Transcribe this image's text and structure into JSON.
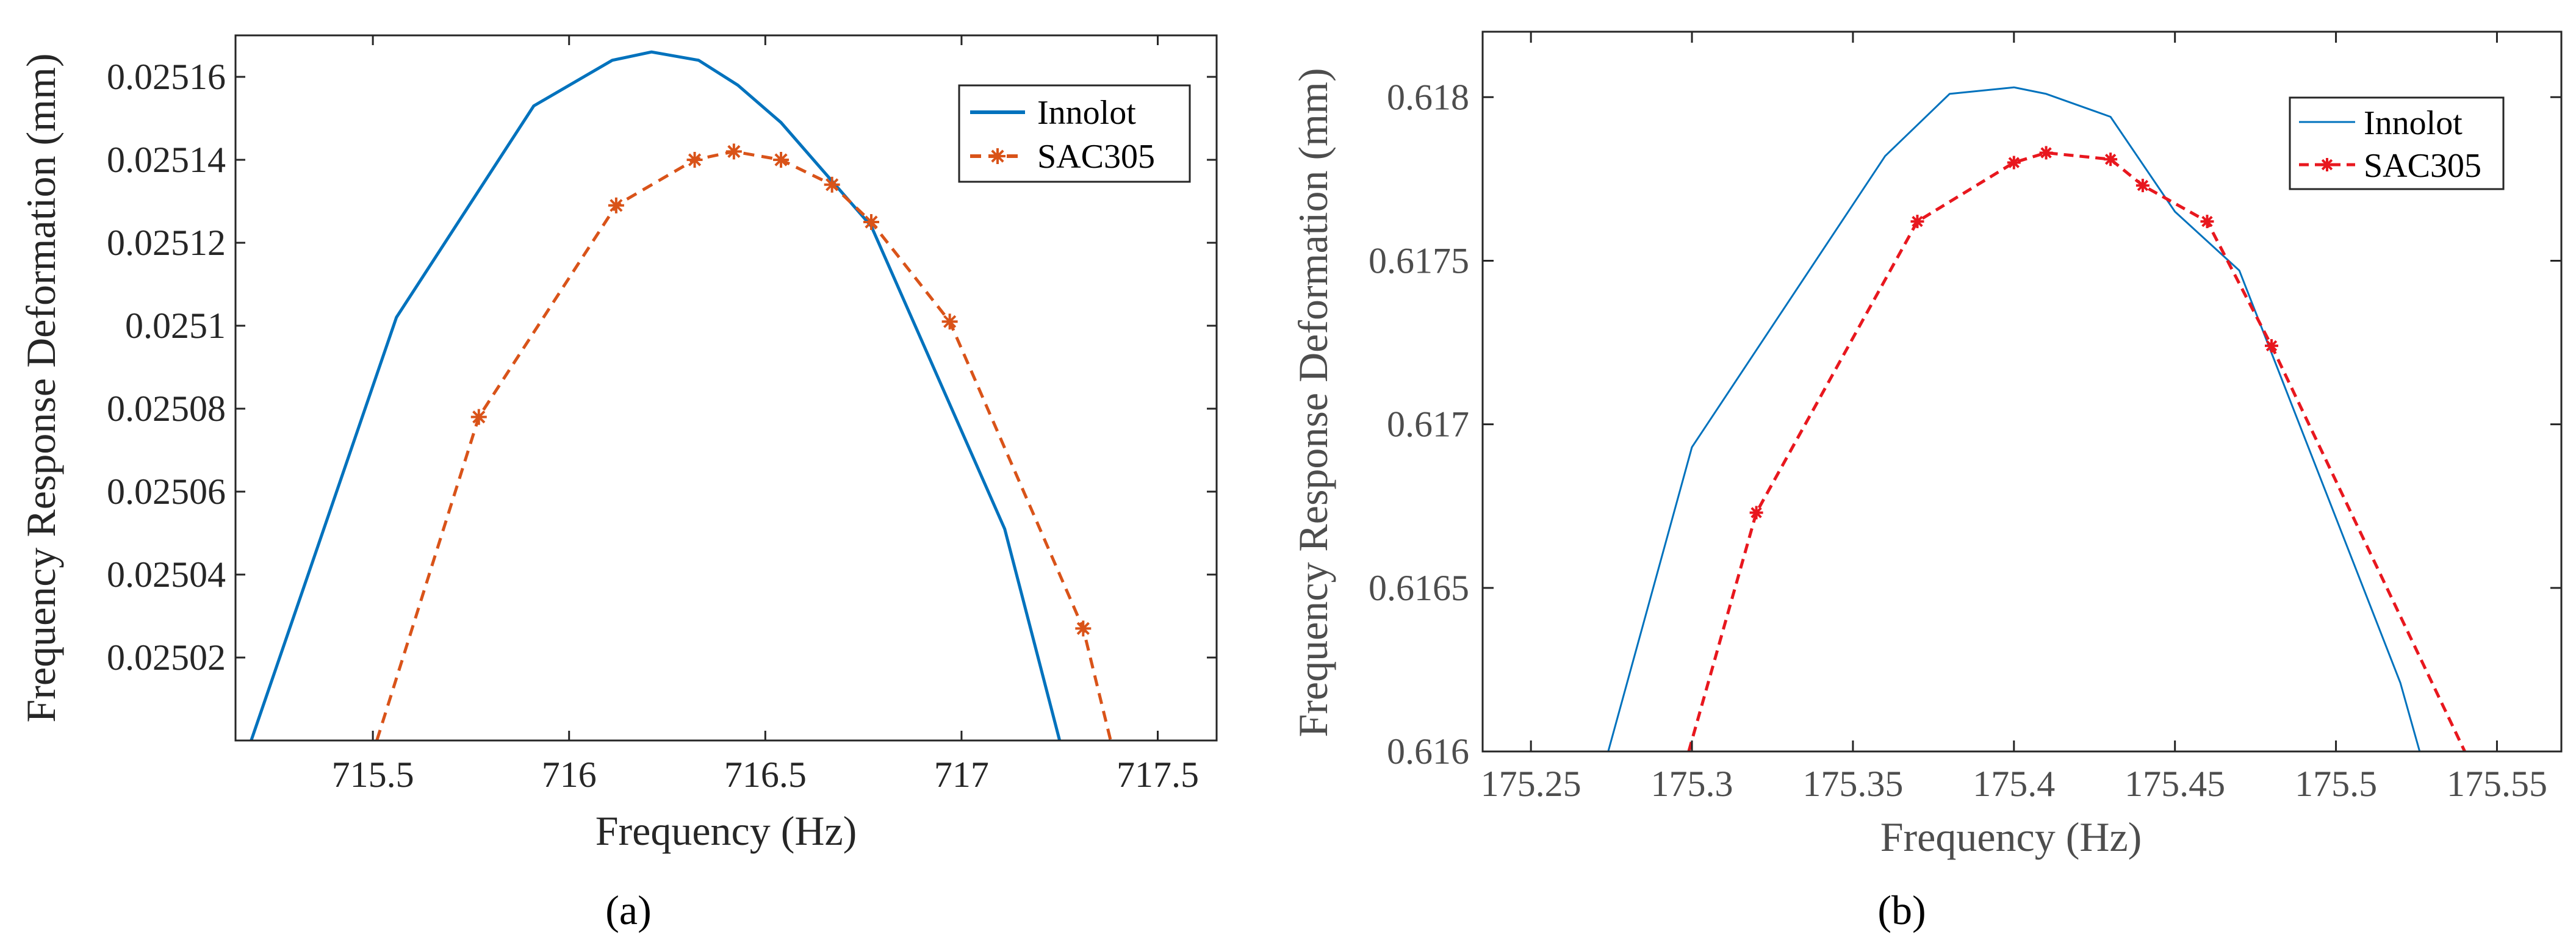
{
  "chart_data": [
    {
      "type": "line",
      "panel_label": "(a)",
      "xlabel": "Frequency (Hz)",
      "ylabel": "Frequency Response Deformation (mm)",
      "xlim": [
        715.15,
        717.65
      ],
      "ylim": [
        0.025,
        0.02517
      ],
      "xticks": [
        715.5,
        716,
        716.5,
        717,
        717.5
      ],
      "xtick_labels": [
        "715.5",
        "716",
        "716.5",
        "717",
        "717.5"
      ],
      "yticks": [
        0.02502,
        0.02504,
        0.02506,
        0.02508,
        0.0251,
        0.02512,
        0.02514,
        0.02516
      ],
      "ytick_labels": [
        "0.02502",
        "0.02504",
        "0.02506",
        "0.02508",
        "0.0251",
        "0.02512",
        "0.02514",
        "0.02516"
      ],
      "legend": {
        "position": "top-right",
        "entries": [
          "Innolot",
          "SAC305"
        ]
      },
      "series": [
        {
          "name": "Innolot",
          "color": "#0072BD",
          "style": "solid",
          "marker": "none",
          "x": [
            715.19,
            715.56,
            715.91,
            716.11,
            716.21,
            716.33,
            716.43,
            716.54,
            716.77,
            717.11,
            717.25
          ],
          "y": [
            0.025,
            0.025102,
            0.025153,
            0.025164,
            0.025166,
            0.025164,
            0.025158,
            0.025149,
            0.025124,
            0.025051,
            0.025
          ]
        },
        {
          "name": "SAC305",
          "color": "#D95319",
          "style": "dashed",
          "marker": "asterisk",
          "marker_points": [
            false,
            true,
            true,
            true,
            true,
            true,
            true,
            true,
            true,
            true,
            false
          ],
          "x": [
            715.51,
            715.77,
            716.12,
            716.32,
            716.42,
            716.54,
            716.67,
            716.77,
            716.97,
            717.31,
            717.38
          ],
          "y": [
            0.025,
            0.025078,
            0.025129,
            0.02514,
            0.025142,
            0.02514,
            0.025134,
            0.025125,
            0.025101,
            0.025027,
            0.025
          ]
        }
      ]
    },
    {
      "type": "line",
      "panel_label": "(b)",
      "xlabel": "Frequency (Hz)",
      "ylabel": "Frequency Response Deformation (mm)",
      "xlim": [
        175.235,
        175.57
      ],
      "ylim": [
        0.616,
        0.6182
      ],
      "xticks": [
        175.25,
        175.3,
        175.35,
        175.4,
        175.45,
        175.5,
        175.55
      ],
      "xtick_labels": [
        "175.25",
        "175.3",
        "175.35",
        "175.4",
        "175.45",
        "175.5",
        "175.55"
      ],
      "yticks": [
        0.616,
        0.6165,
        0.617,
        0.6175,
        0.618
      ],
      "ytick_labels": [
        "0.616",
        "0.6165",
        "0.617",
        "0.6175",
        "0.618"
      ],
      "legend": {
        "position": "top-right",
        "entries": [
          "Innolot",
          "SAC305"
        ]
      },
      "series": [
        {
          "name": "Innolot",
          "color": "#0072BD",
          "style": "solid",
          "marker": "none",
          "x": [
            175.274,
            175.3,
            175.36,
            175.38,
            175.4,
            175.41,
            175.43,
            175.45,
            175.47,
            175.52,
            175.526
          ],
          "y": [
            0.616,
            0.61693,
            0.61782,
            0.61801,
            0.61803,
            0.61801,
            0.61794,
            0.61765,
            0.61747,
            0.61621,
            0.616
          ]
        },
        {
          "name": "SAC305",
          "color": "#E8171E",
          "style": "dashed",
          "marker": "asterisk",
          "marker_points": [
            false,
            true,
            true,
            true,
            true,
            true,
            true,
            true,
            true,
            false
          ],
          "x": [
            175.299,
            175.32,
            175.37,
            175.4,
            175.41,
            175.43,
            175.44,
            175.46,
            175.48,
            175.54
          ],
          "y": [
            0.616,
            0.61673,
            0.61762,
            0.6178,
            0.61783,
            0.61781,
            0.61773,
            0.61762,
            0.61724,
            0.616
          ]
        }
      ]
    }
  ]
}
